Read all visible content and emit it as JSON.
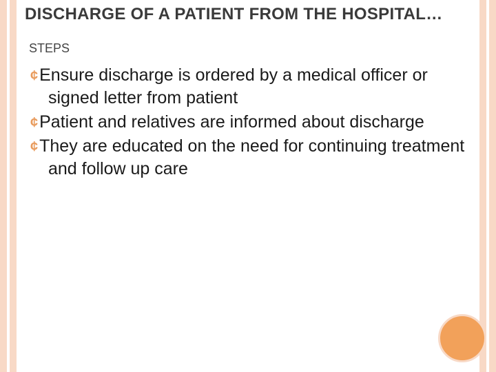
{
  "theme": {
    "stripe_color": "#f8d9c6",
    "circle_fill": "#f2a15a",
    "circle_border": "#f8d9c6",
    "bullet_color": "#e89a5b",
    "title_color": "#3a3a3a",
    "text_color": "#1a1a1a",
    "background": "#ffffff",
    "title_fontsize": 24,
    "body_fontsize": 25,
    "subhead_fontsize": 18
  },
  "title": "DISCHARGE OF A PATIENT FROM THE HOSPITAL…",
  "subhead": "STEPS",
  "bullet_glyph": "¢",
  "bullets": [
    "Ensure discharge is ordered by a medical officer or signed letter from patient",
    "Patient and relatives are informed about discharge",
    "They are educated on the need for continuing treatment and follow up care"
  ]
}
